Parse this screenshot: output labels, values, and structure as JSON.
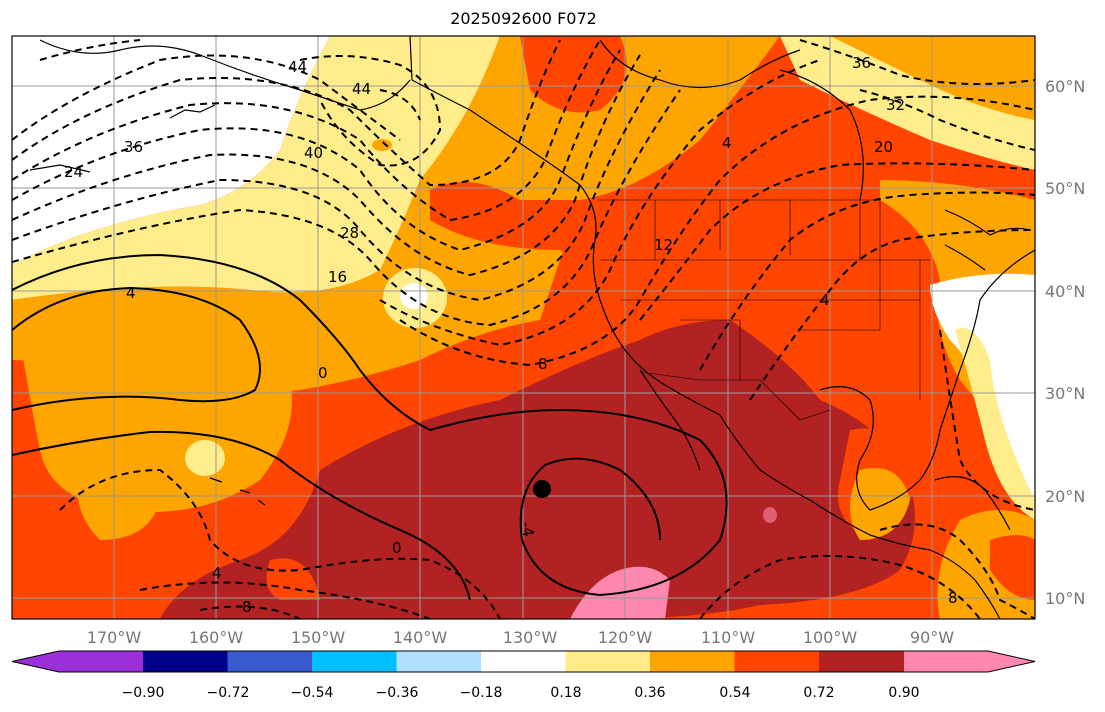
{
  "title": "2025092600 F072",
  "lon_ticks": [
    "170°W",
    "160°W",
    "150°W",
    "140°W",
    "130°W",
    "120°W",
    "110°W",
    "100°W",
    "90°W"
  ],
  "lat_ticks": [
    "60°N",
    "50°N",
    "40°N",
    "30°N",
    "20°N",
    "10°N"
  ],
  "contour_labels": [
    "44",
    "44",
    "36",
    "36",
    "32",
    "24",
    "40",
    "28",
    "20",
    "16",
    "12",
    "4",
    "8",
    "4",
    "0",
    "0",
    "4",
    "4",
    "8",
    "8",
    "-4"
  ],
  "colorbar": {
    "ticks": [
      "−0.90",
      "−0.72",
      "−0.54",
      "−0.36",
      "−0.18",
      "0.18",
      "0.36",
      "0.54",
      "0.72",
      "0.90"
    ],
    "colors": [
      "#9b30d9",
      "#00008b",
      "#3a5bd0",
      "#00bfff",
      "#b0e0ff",
      "#ffffff",
      "#ffec8b",
      "#ffa500",
      "#ff4500",
      "#b22222",
      "#ff88b0"
    ]
  },
  "palette": {
    "land_border": "#000000",
    "grid": "#999999",
    "light_yellow": "#ffec8b",
    "orange": "#ffa500",
    "red_orange": "#ff4500",
    "dark_red": "#b22222",
    "pink": "#ff88b0"
  },
  "marker": "black-dot"
}
